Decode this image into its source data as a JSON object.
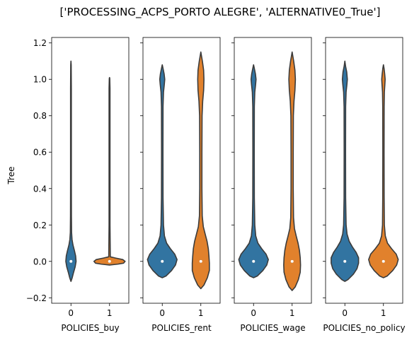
{
  "chart_data": {
    "type": "violin",
    "title": "['PROCESSING_ACPS_PORTO ALEGRE', 'ALTERNATIVE0_True']",
    "ylabel": "Tree",
    "ylim": [
      -0.23,
      1.23
    ],
    "yticks": [
      -0.2,
      0.0,
      0.2,
      0.4,
      0.6,
      0.8,
      1.0,
      1.2
    ],
    "ytick_labels": [
      "−0.2",
      "0.0",
      "0.2",
      "0.4",
      "0.6",
      "0.8",
      "1.0",
      "1.2"
    ],
    "shared_y": true,
    "colors": {
      "0": "#3274a1",
      "1": "#e1812c"
    },
    "panels": [
      {
        "xlabel": "POLICIES_buy",
        "categories": [
          "0",
          "1"
        ],
        "violins": [
          {
            "category": "0",
            "color": "#3274a1",
            "median": 0.0,
            "range": [
              -0.11,
              1.1
            ],
            "q1": 0.0,
            "q3": 0.0,
            "profile": [
              [
                -0.11,
                0.0
              ],
              [
                -0.09,
                0.08
              ],
              [
                -0.06,
                0.17
              ],
              [
                -0.03,
                0.27
              ],
              [
                0.0,
                0.33
              ],
              [
                0.03,
                0.3
              ],
              [
                0.06,
                0.22
              ],
              [
                0.09,
                0.13
              ],
              [
                0.12,
                0.07
              ],
              [
                0.16,
                0.04
              ],
              [
                0.25,
                0.03
              ],
              [
                0.45,
                0.025
              ],
              [
                0.7,
                0.025
              ],
              [
                0.95,
                0.025
              ],
              [
                1.08,
                0.015
              ],
              [
                1.1,
                0.0
              ]
            ]
          },
          {
            "category": "1",
            "color": "#e1812c",
            "median": 0.0,
            "range": [
              -0.02,
              1.01
            ],
            "q1": 0.0,
            "q3": 0.0,
            "profile": [
              [
                -0.02,
                0.0
              ],
              [
                -0.015,
                0.55
              ],
              [
                -0.01,
                0.9
              ],
              [
                0.0,
                1.0
              ],
              [
                0.01,
                0.85
              ],
              [
                0.018,
                0.4
              ],
              [
                0.025,
                0.05
              ],
              [
                0.2,
                0.03
              ],
              [
                0.6,
                0.03
              ],
              [
                0.95,
                0.03
              ],
              [
                1.005,
                0.015
              ],
              [
                1.01,
                0.0
              ]
            ]
          }
        ]
      },
      {
        "xlabel": "POLICIES_rent",
        "categories": [
          "0",
          "1"
        ],
        "violins": [
          {
            "category": "0",
            "color": "#3274a1",
            "median": 0.0,
            "range": [
              -0.09,
              1.08
            ],
            "q1": 0.0,
            "q3": 0.0,
            "profile": [
              [
                -0.09,
                0.0
              ],
              [
                -0.08,
                0.25
              ],
              [
                -0.05,
                0.6
              ],
              [
                -0.02,
                0.85
              ],
              [
                0.01,
                0.95
              ],
              [
                0.04,
                0.8
              ],
              [
                0.07,
                0.52
              ],
              [
                0.1,
                0.28
              ],
              [
                0.14,
                0.14
              ],
              [
                0.2,
                0.08
              ],
              [
                0.35,
                0.05
              ],
              [
                0.6,
                0.045
              ],
              [
                0.85,
                0.05
              ],
              [
                0.93,
                0.08
              ],
              [
                0.97,
                0.13
              ],
              [
                1.0,
                0.16
              ],
              [
                1.03,
                0.12
              ],
              [
                1.06,
                0.05
              ],
              [
                1.08,
                0.0
              ]
            ]
          },
          {
            "category": "1",
            "color": "#e1812c",
            "median": 0.0,
            "range": [
              -0.15,
              1.15
            ],
            "q1": 0.0,
            "q3": 0.0,
            "profile": [
              [
                -0.15,
                0.0
              ],
              [
                -0.13,
                0.2
              ],
              [
                -0.09,
                0.42
              ],
              [
                -0.05,
                0.55
              ],
              [
                -0.01,
                0.55
              ],
              [
                0.03,
                0.52
              ],
              [
                0.07,
                0.48
              ],
              [
                0.11,
                0.4
              ],
              [
                0.15,
                0.28
              ],
              [
                0.19,
                0.16
              ],
              [
                0.25,
                0.09
              ],
              [
                0.4,
                0.07
              ],
              [
                0.6,
                0.07
              ],
              [
                0.8,
                0.08
              ],
              [
                0.88,
                0.12
              ],
              [
                0.94,
                0.18
              ],
              [
                1.0,
                0.2
              ],
              [
                1.05,
                0.18
              ],
              [
                1.1,
                0.1
              ],
              [
                1.15,
                0.0
              ]
            ]
          }
        ]
      },
      {
        "xlabel": "POLICIES_wage",
        "categories": [
          "0",
          "1"
        ],
        "violins": [
          {
            "category": "0",
            "color": "#3274a1",
            "median": 0.0,
            "range": [
              -0.09,
              1.08
            ],
            "q1": 0.0,
            "q3": 0.0,
            "profile": [
              [
                -0.09,
                0.0
              ],
              [
                -0.08,
                0.25
              ],
              [
                -0.05,
                0.6
              ],
              [
                -0.02,
                0.85
              ],
              [
                0.01,
                0.95
              ],
              [
                0.04,
                0.8
              ],
              [
                0.07,
                0.52
              ],
              [
                0.1,
                0.28
              ],
              [
                0.14,
                0.14
              ],
              [
                0.2,
                0.08
              ],
              [
                0.35,
                0.05
              ],
              [
                0.6,
                0.045
              ],
              [
                0.85,
                0.05
              ],
              [
                0.93,
                0.08
              ],
              [
                0.97,
                0.13
              ],
              [
                1.0,
                0.16
              ],
              [
                1.03,
                0.12
              ],
              [
                1.06,
                0.05
              ],
              [
                1.08,
                0.0
              ]
            ]
          },
          {
            "category": "1",
            "color": "#e1812c",
            "median": 0.0,
            "range": [
              -0.16,
              1.15
            ],
            "q1": 0.0,
            "q3": 0.0,
            "profile": [
              [
                -0.16,
                0.0
              ],
              [
                -0.14,
                0.2
              ],
              [
                -0.1,
                0.4
              ],
              [
                -0.06,
                0.52
              ],
              [
                -0.02,
                0.54
              ],
              [
                0.02,
                0.52
              ],
              [
                0.06,
                0.47
              ],
              [
                0.1,
                0.38
              ],
              [
                0.14,
                0.26
              ],
              [
                0.18,
                0.15
              ],
              [
                0.24,
                0.09
              ],
              [
                0.4,
                0.07
              ],
              [
                0.6,
                0.07
              ],
              [
                0.8,
                0.08
              ],
              [
                0.88,
                0.12
              ],
              [
                0.94,
                0.18
              ],
              [
                1.0,
                0.21
              ],
              [
                1.05,
                0.18
              ],
              [
                1.1,
                0.1
              ],
              [
                1.15,
                0.0
              ]
            ]
          }
        ]
      },
      {
        "xlabel": "POLICIES_no_policy",
        "categories": [
          "0",
          "1"
        ],
        "violins": [
          {
            "category": "0",
            "color": "#3274a1",
            "median": 0.0,
            "range": [
              -0.11,
              1.1
            ],
            "q1": 0.0,
            "q3": 0.0,
            "profile": [
              [
                -0.11,
                0.0
              ],
              [
                -0.1,
                0.2
              ],
              [
                -0.07,
                0.55
              ],
              [
                -0.04,
                0.78
              ],
              [
                -0.01,
                0.88
              ],
              [
                0.02,
                0.88
              ],
              [
                0.05,
                0.72
              ],
              [
                0.08,
                0.48
              ],
              [
                0.11,
                0.28
              ],
              [
                0.15,
                0.14
              ],
              [
                0.2,
                0.08
              ],
              [
                0.35,
                0.05
              ],
              [
                0.6,
                0.045
              ],
              [
                0.85,
                0.05
              ],
              [
                0.93,
                0.08
              ],
              [
                0.97,
                0.13
              ],
              [
                1.0,
                0.16
              ],
              [
                1.04,
                0.12
              ],
              [
                1.07,
                0.05
              ],
              [
                1.1,
                0.0
              ]
            ]
          },
          {
            "category": "1",
            "color": "#e1812c",
            "median": 0.0,
            "range": [
              -0.09,
              1.08
            ],
            "q1": 0.0,
            "q3": 0.0,
            "profile": [
              [
                -0.09,
                0.0
              ],
              [
                -0.08,
                0.25
              ],
              [
                -0.05,
                0.6
              ],
              [
                -0.02,
                0.85
              ],
              [
                0.01,
                0.95
              ],
              [
                0.04,
                0.82
              ],
              [
                0.07,
                0.52
              ],
              [
                0.1,
                0.26
              ],
              [
                0.14,
                0.12
              ],
              [
                0.2,
                0.06
              ],
              [
                0.35,
                0.045
              ],
              [
                0.6,
                0.04
              ],
              [
                0.85,
                0.045
              ],
              [
                0.93,
                0.06
              ],
              [
                0.97,
                0.09
              ],
              [
                1.0,
                0.11
              ],
              [
                1.03,
                0.08
              ],
              [
                1.06,
                0.04
              ],
              [
                1.08,
                0.0
              ]
            ]
          }
        ]
      }
    ]
  }
}
